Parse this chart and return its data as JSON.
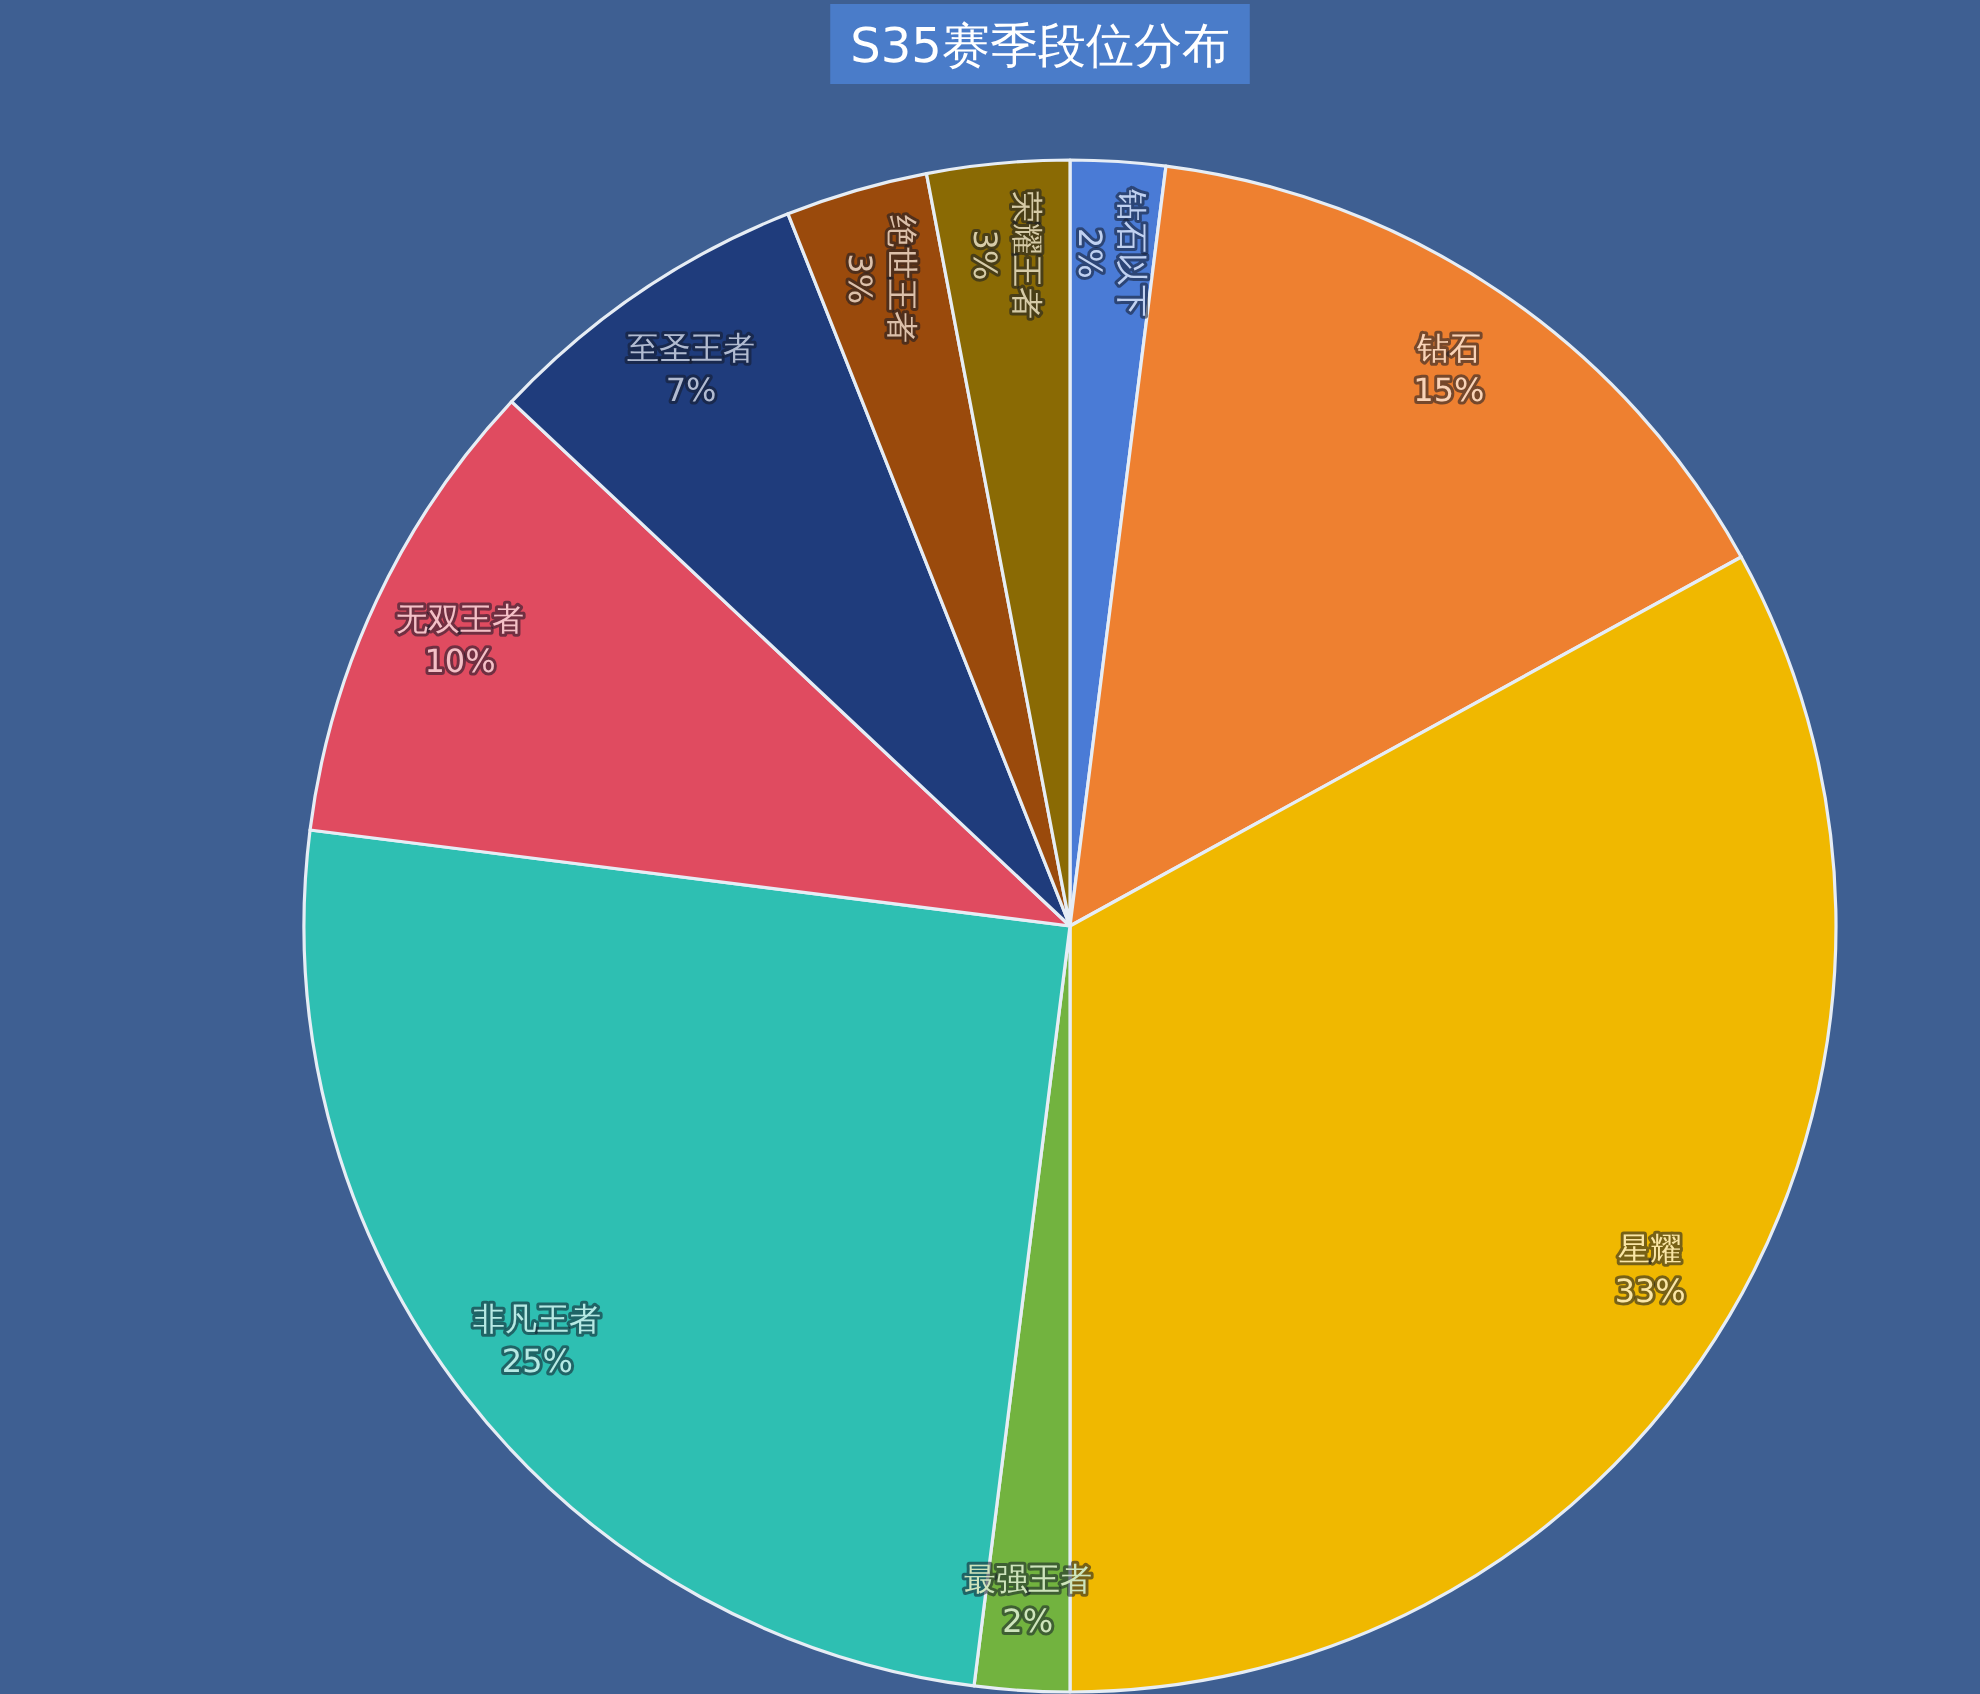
{
  "chart_data": {
    "type": "pie",
    "title": "S35赛季段位分布",
    "categories": [
      "钻石以下",
      "钻石",
      "星耀",
      "最强王者",
      "非凡王者",
      "无双王者",
      "至圣王者",
      "绝世王者",
      "荣耀王者"
    ],
    "values": [
      2,
      15,
      33,
      2,
      25,
      10,
      7,
      3,
      3
    ],
    "colors": [
      "#4a7bd6",
      "#ee8030",
      "#f0b800",
      "#72b33f",
      "#2ebfb2",
      "#e04b60",
      "#1f3c7c",
      "#9a4a0c",
      "#8a6a04"
    ],
    "value_labels": [
      "2%",
      "15%",
      "33%",
      "2%",
      "25%",
      "10%",
      "7%",
      "3%",
      "3%"
    ]
  }
}
